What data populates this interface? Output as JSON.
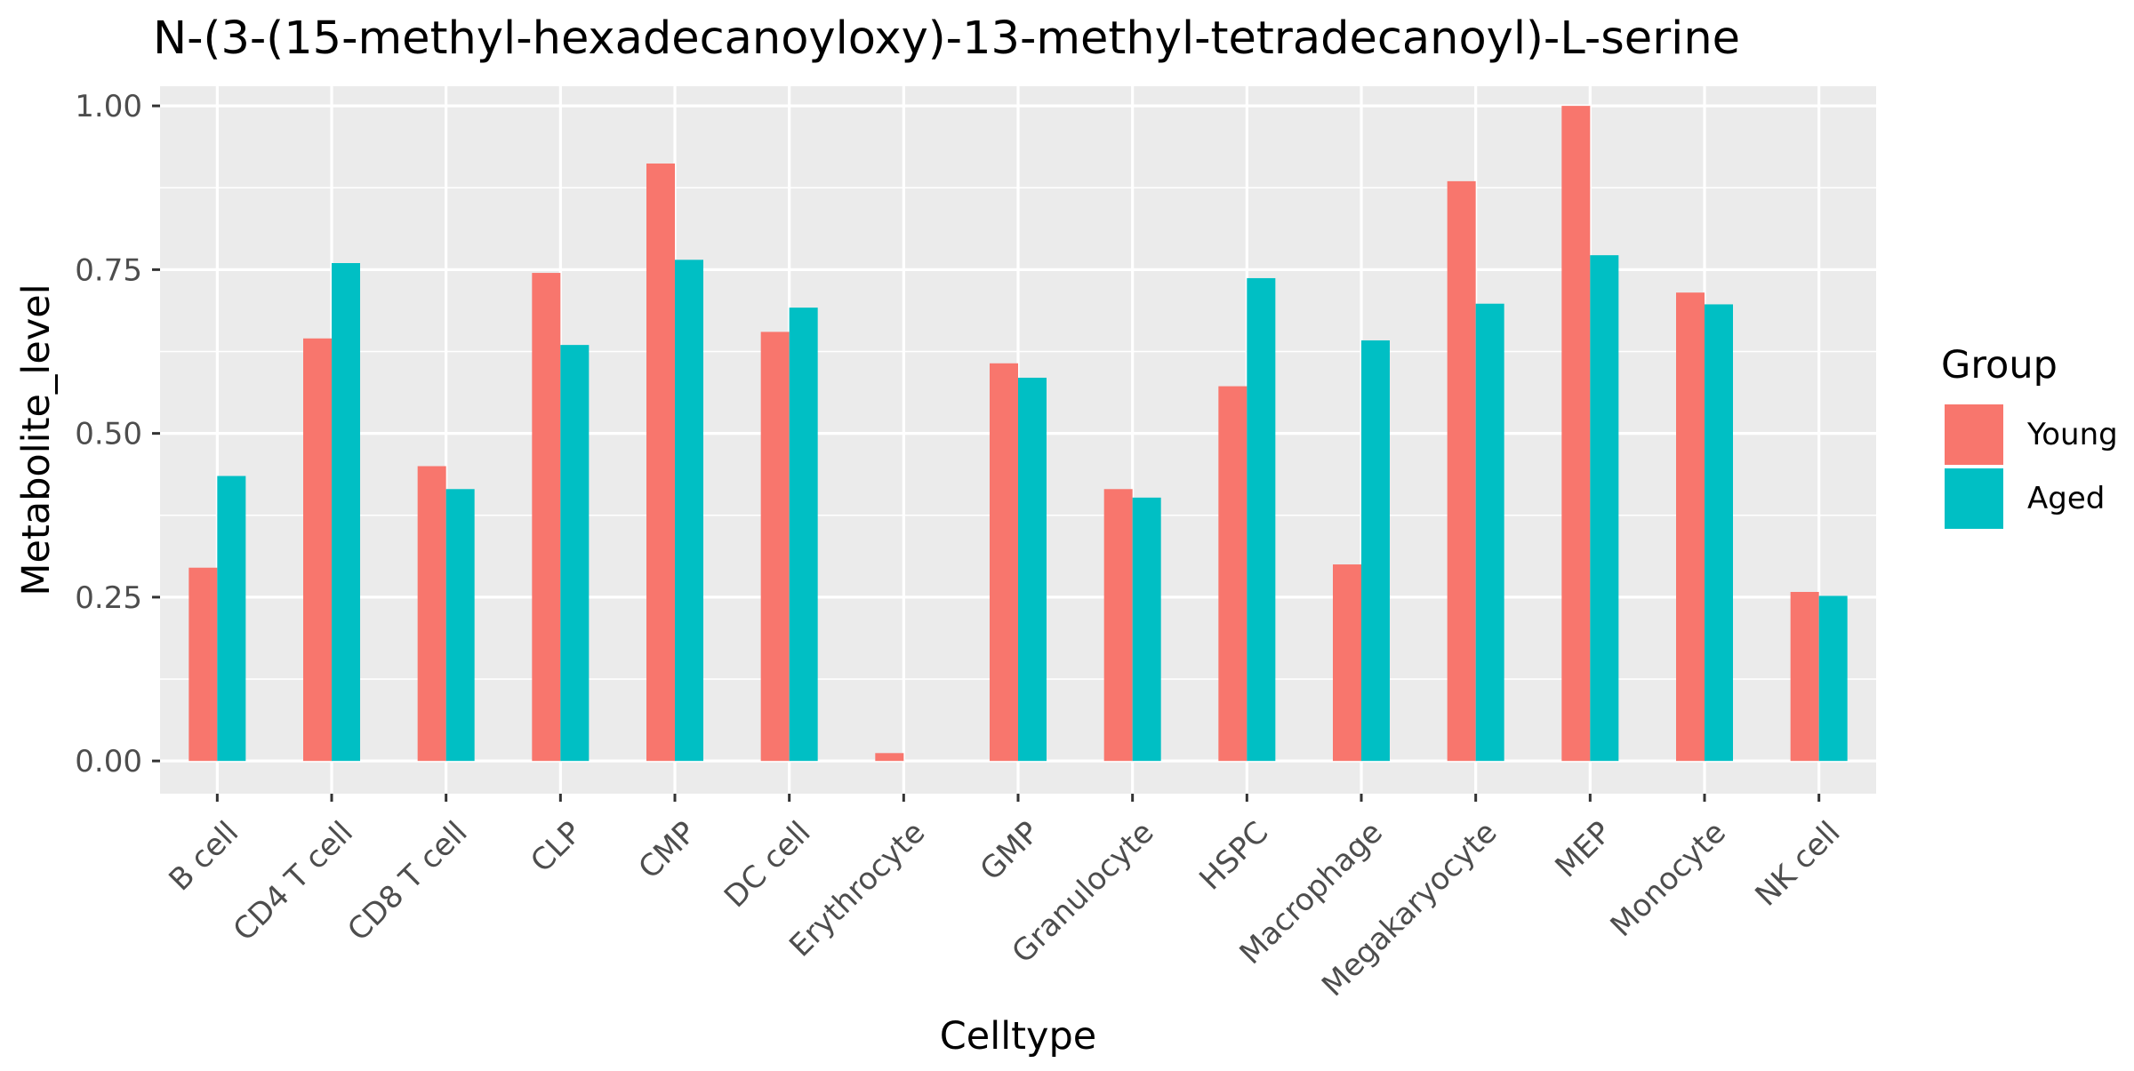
{
  "chart_data": {
    "type": "bar",
    "title": "N-(3-(15-methyl-hexadecanoyloxy)-13-methyl-tetradecanoyl)-L-serine",
    "xlabel": "Celltype",
    "ylabel": "Metabolite_level",
    "ylim": [
      -0.05,
      1.03
    ],
    "yticks": [
      "0.00",
      "0.25",
      "0.50",
      "0.75",
      "1.00"
    ],
    "ytick_values": [
      0,
      0.25,
      0.5,
      0.75,
      1.0
    ],
    "grid": true,
    "legend": {
      "title": "Group",
      "position": "right"
    },
    "categories": [
      "B cell",
      "CD4 T cell",
      "CD8 T cell",
      "CLP",
      "CMP",
      "DC cell",
      "Erythrocyte",
      "GMP",
      "Granulocyte",
      "HSPC",
      "Macrophage",
      "Megakaryocyte",
      "MEP",
      "Monocyte",
      "NK cell"
    ],
    "series": [
      {
        "name": "Young",
        "color": "#F8766D",
        "values": [
          0.295,
          0.645,
          0.45,
          0.745,
          0.912,
          0.655,
          0.012,
          0.607,
          0.415,
          0.572,
          0.3,
          0.885,
          1.0,
          0.715,
          0.258
        ]
      },
      {
        "name": "Aged",
        "color": "#00BFC4",
        "values": [
          0.435,
          0.76,
          0.415,
          0.635,
          0.765,
          0.692,
          0.0,
          0.585,
          0.402,
          0.737,
          0.642,
          0.698,
          0.772,
          0.697,
          0.252
        ]
      }
    ]
  }
}
